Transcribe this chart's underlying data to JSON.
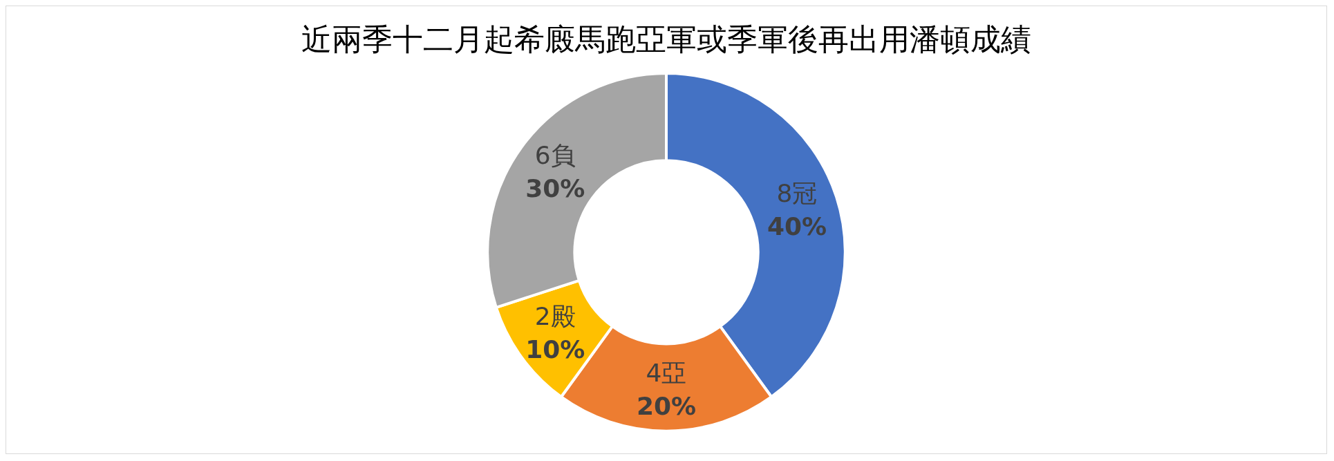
{
  "chart_data": {
    "type": "donut",
    "title": "近兩季十二月起希廄馬跑亞軍或季軍後再出用潘頓成績",
    "categories": [
      "8冠",
      "4亞",
      "2殿",
      "6負"
    ],
    "values": [
      40,
      20,
      10,
      30
    ],
    "value_labels": [
      "40%",
      "20%",
      "10%",
      "30%"
    ],
    "colors": [
      "#4472c4",
      "#ed7d31",
      "#ffc000",
      "#a5a5a5"
    ],
    "legend": false
  }
}
